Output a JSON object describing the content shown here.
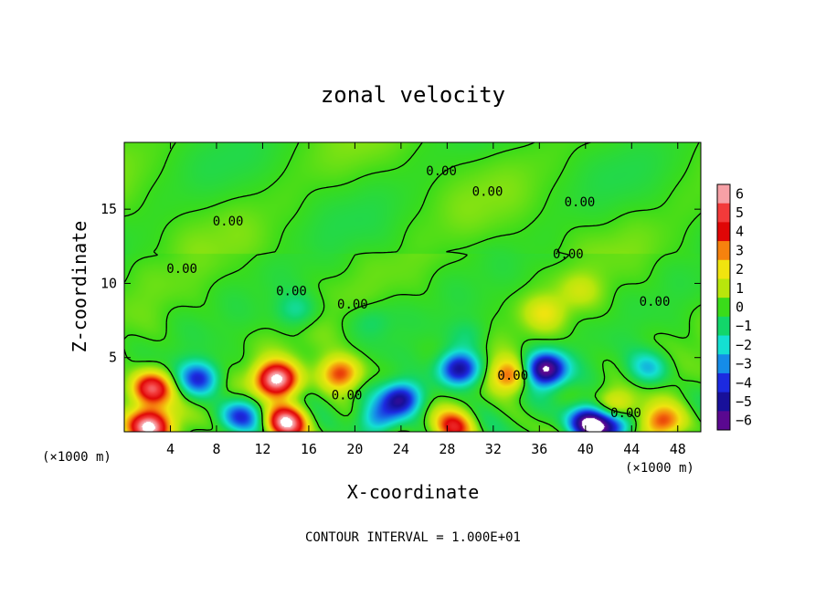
{
  "chart_data": {
    "type": "heatmap",
    "title": "zonal velocity",
    "xlabel": "X-coordinate",
    "ylabel": "Z-coordinate",
    "x_unit_label": "(×1000 m)",
    "x_unit_label_right": "(×1000 m)",
    "footer": "CONTOUR INTERVAL = 1.000E+01",
    "xlim": [
      0,
      50
    ],
    "ylim": [
      0,
      19.5
    ],
    "x_ticks": [
      4,
      8,
      12,
      16,
      20,
      24,
      28,
      32,
      36,
      40,
      44,
      48
    ],
    "y_ticks": [
      5,
      10,
      15
    ],
    "colorbar": {
      "levels": [
        6,
        5,
        4,
        3,
        2,
        1,
        0,
        -1,
        -2,
        -3,
        -4,
        -5,
        -6
      ],
      "colors": [
        "#f6a0a6",
        "#f33a3a",
        "#e00606",
        "#f6820e",
        "#f0e40f",
        "#b8e60c",
        "#3adc1a",
        "#12d66a",
        "#14e0d2",
        "#158ce8",
        "#1c2ae0",
        "#18109a",
        "#5a0890"
      ]
    },
    "contour_level": 0.0,
    "contour_labels": [
      "0.00",
      "0.00",
      "0.00",
      "0.00",
      "0.00",
      "0.00",
      "0.00",
      "0.00",
      "0.00",
      "0.00",
      "0.00",
      "0.00"
    ],
    "features": [
      {
        "kind": "max",
        "x": 2.3,
        "z": 2.9,
        "value": 5.5
      },
      {
        "kind": "max",
        "x": 13.2,
        "z": 3.5,
        "value": 6.5
      },
      {
        "kind": "max",
        "x": 18.8,
        "z": 3.9,
        "value": 4
      },
      {
        "kind": "max",
        "x": 14.0,
        "z": 0.6,
        "value": 6.5
      },
      {
        "kind": "max",
        "x": 2.2,
        "z": 0.4,
        "value": 6.5
      },
      {
        "kind": "max",
        "x": 33.5,
        "z": 3.8,
        "value": 3.5
      },
      {
        "kind": "max",
        "x": 28.5,
        "z": 0.3,
        "value": 4
      },
      {
        "kind": "max",
        "x": 42.5,
        "z": 1.5,
        "value": 3
      },
      {
        "kind": "max",
        "x": 46.5,
        "z": 0.6,
        "value": 4
      },
      {
        "kind": "max",
        "x": 36.5,
        "z": 8.0,
        "value": 1.5
      },
      {
        "kind": "max",
        "x": 39.5,
        "z": 9.5,
        "value": 1
      },
      {
        "kind": "min",
        "x": 6.5,
        "z": 3.6,
        "value": -4
      },
      {
        "kind": "min",
        "x": 24.0,
        "z": 2.2,
        "value": -5.5
      },
      {
        "kind": "min",
        "x": 29.0,
        "z": 4.2,
        "value": -5.5
      },
      {
        "kind": "min",
        "x": 36.5,
        "z": 4.2,
        "value": -6.5
      },
      {
        "kind": "min",
        "x": 10.0,
        "z": 1.0,
        "value": -4
      },
      {
        "kind": "min",
        "x": 40.3,
        "z": 0.6,
        "value": -6.5
      },
      {
        "kind": "min",
        "x": 42.5,
        "z": 0.5,
        "value": -5
      },
      {
        "kind": "min",
        "x": 22.0,
        "z": 0.8,
        "value": -3
      },
      {
        "kind": "min",
        "x": 45.5,
        "z": 4.3,
        "value": -2.5
      },
      {
        "kind": "min",
        "x": 15.0,
        "z": 8.2,
        "value": -1.5
      },
      {
        "kind": "min",
        "x": 21.5,
        "z": 7.5,
        "value": -1
      },
      {
        "kind": "min",
        "x": 30.0,
        "z": 6.5,
        "value": -1
      }
    ]
  }
}
